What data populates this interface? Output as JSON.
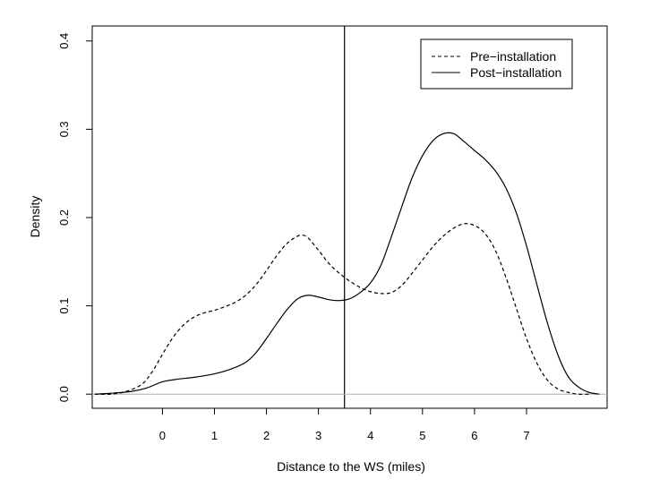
{
  "chart_data": {
    "type": "line",
    "title": "",
    "xlabel": "Distance to the WS (miles)",
    "ylabel": "Density",
    "xlim": [
      -1.35,
      8.55
    ],
    "ylim": [
      -0.016,
      0.417
    ],
    "x_ticks": [
      0,
      1,
      2,
      3,
      4,
      5,
      6,
      7
    ],
    "y_ticks": [
      0.0,
      0.1,
      0.2,
      0.3,
      0.4
    ],
    "x_tick_labels": [
      "0",
      "1",
      "2",
      "3",
      "4",
      "5",
      "6",
      "7"
    ],
    "y_tick_labels": [
      "0.0",
      "0.1",
      "0.2",
      "0.3",
      "0.4"
    ],
    "reference_lines": [
      {
        "orientation": "vertical",
        "x": 3.5,
        "color": "#000000"
      },
      {
        "orientation": "horizontal",
        "y": 0.0,
        "color": "#b0b0b0"
      }
    ],
    "legend": {
      "position": "top-right",
      "entries": [
        "Pre−installation",
        "Post−installation"
      ]
    },
    "grid": false,
    "series": [
      {
        "name": "Pre−installation",
        "style": "dashed",
        "color": "#000000",
        "points": [
          [
            -1.3,
            0.0
          ],
          [
            -1.0,
            0.0
          ],
          [
            -0.7,
            0.003
          ],
          [
            -0.4,
            0.011
          ],
          [
            -0.2,
            0.025
          ],
          [
            0.0,
            0.045
          ],
          [
            0.2,
            0.064
          ],
          [
            0.4,
            0.078
          ],
          [
            0.6,
            0.087
          ],
          [
            0.8,
            0.092
          ],
          [
            1.0,
            0.095
          ],
          [
            1.2,
            0.099
          ],
          [
            1.4,
            0.104
          ],
          [
            1.6,
            0.112
          ],
          [
            1.8,
            0.124
          ],
          [
            2.0,
            0.14
          ],
          [
            2.2,
            0.157
          ],
          [
            2.4,
            0.171
          ],
          [
            2.6,
            0.179
          ],
          [
            2.7,
            0.18
          ],
          [
            2.8,
            0.177
          ],
          [
            3.0,
            0.163
          ],
          [
            3.2,
            0.148
          ],
          [
            3.4,
            0.137
          ],
          [
            3.6,
            0.128
          ],
          [
            3.8,
            0.121
          ],
          [
            4.0,
            0.116
          ],
          [
            4.2,
            0.114
          ],
          [
            4.4,
            0.115
          ],
          [
            4.6,
            0.123
          ],
          [
            4.8,
            0.137
          ],
          [
            5.0,
            0.152
          ],
          [
            5.2,
            0.167
          ],
          [
            5.4,
            0.179
          ],
          [
            5.6,
            0.188
          ],
          [
            5.8,
            0.193
          ],
          [
            6.0,
            0.191
          ],
          [
            6.2,
            0.182
          ],
          [
            6.4,
            0.163
          ],
          [
            6.6,
            0.133
          ],
          [
            6.8,
            0.098
          ],
          [
            7.0,
            0.063
          ],
          [
            7.2,
            0.035
          ],
          [
            7.4,
            0.016
          ],
          [
            7.6,
            0.006
          ],
          [
            7.8,
            0.002
          ],
          [
            8.0,
            0.0
          ],
          [
            8.2,
            0.0
          ]
        ]
      },
      {
        "name": "Post−installation",
        "style": "solid",
        "color": "#000000",
        "points": [
          [
            -1.3,
            0.0
          ],
          [
            -1.0,
            0.001
          ],
          [
            -0.6,
            0.003
          ],
          [
            -0.3,
            0.007
          ],
          [
            0.0,
            0.014
          ],
          [
            0.3,
            0.017
          ],
          [
            0.6,
            0.019
          ],
          [
            1.0,
            0.023
          ],
          [
            1.3,
            0.028
          ],
          [
            1.6,
            0.036
          ],
          [
            1.8,
            0.047
          ],
          [
            2.0,
            0.063
          ],
          [
            2.2,
            0.08
          ],
          [
            2.4,
            0.096
          ],
          [
            2.6,
            0.108
          ],
          [
            2.8,
            0.112
          ],
          [
            3.0,
            0.11
          ],
          [
            3.2,
            0.107
          ],
          [
            3.4,
            0.106
          ],
          [
            3.6,
            0.108
          ],
          [
            3.8,
            0.115
          ],
          [
            4.0,
            0.126
          ],
          [
            4.2,
            0.146
          ],
          [
            4.4,
            0.178
          ],
          [
            4.6,
            0.212
          ],
          [
            4.8,
            0.245
          ],
          [
            5.0,
            0.27
          ],
          [
            5.2,
            0.287
          ],
          [
            5.4,
            0.295
          ],
          [
            5.6,
            0.295
          ],
          [
            5.8,
            0.286
          ],
          [
            6.0,
            0.276
          ],
          [
            6.2,
            0.266
          ],
          [
            6.4,
            0.253
          ],
          [
            6.6,
            0.234
          ],
          [
            6.8,
            0.206
          ],
          [
            7.0,
            0.168
          ],
          [
            7.2,
            0.124
          ],
          [
            7.4,
            0.081
          ],
          [
            7.6,
            0.045
          ],
          [
            7.8,
            0.02
          ],
          [
            8.0,
            0.008
          ],
          [
            8.2,
            0.002
          ],
          [
            8.4,
            0.0
          ]
        ]
      }
    ]
  }
}
